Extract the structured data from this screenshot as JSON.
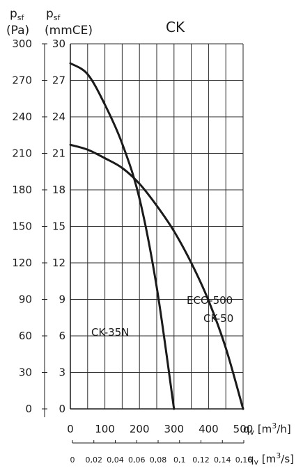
{
  "chart_data": {
    "type": "line",
    "title": "CK",
    "y_axes": [
      {
        "symbol": "p",
        "subscript": "sf",
        "unit": "(Pa)",
        "ticks": [
          "0",
          "30",
          "60",
          "90",
          "120",
          "150",
          "180",
          "210",
          "240",
          "270",
          "300"
        ],
        "range": [
          0,
          300
        ]
      },
      {
        "symbol": "p",
        "subscript": "sf",
        "unit": "(mmCE)",
        "ticks": [
          "0",
          "3",
          "6",
          "9",
          "12",
          "15",
          "18",
          "21",
          "24",
          "27",
          "30"
        ],
        "range": [
          0,
          30
        ]
      }
    ],
    "x_axes": [
      {
        "label": "q",
        "sub": "v",
        "unit_open": " [m",
        "sup": "3",
        "unit_close": "/h]",
        "ticks": [
          "0",
          "100",
          "200",
          "300",
          "400",
          "500"
        ],
        "range": [
          0,
          500
        ]
      },
      {
        "label": "q",
        "sub": "v",
        "unit_open": " [m",
        "sup": "3",
        "unit_close": "/s]",
        "ticks": [
          "0",
          "0,02",
          "0,04",
          "0,06",
          "0,08",
          "0,1",
          "0,12",
          "0,14",
          "0,16"
        ],
        "range": [
          0,
          0.16
        ]
      }
    ],
    "grid": true,
    "series": [
      {
        "name": "CK-35N",
        "x": [
          0,
          50,
          100,
          150,
          200,
          250,
          300
        ],
        "y": [
          28.4,
          27.5,
          25.0,
          21.8,
          17.3,
          10.0,
          0
        ]
      },
      {
        "name": "CK-50",
        "x": [
          0,
          50,
          100,
          150,
          200,
          250,
          300,
          350,
          400,
          450,
          500
        ],
        "y": [
          21.7,
          21.3,
          20.6,
          19.8,
          18.5,
          16.7,
          14.6,
          12.0,
          8.9,
          5.0,
          0
        ]
      }
    ],
    "annotations": [
      {
        "text": "CK-35N"
      },
      {
        "text": "ECO-500"
      },
      {
        "text": "CK-50"
      }
    ]
  }
}
